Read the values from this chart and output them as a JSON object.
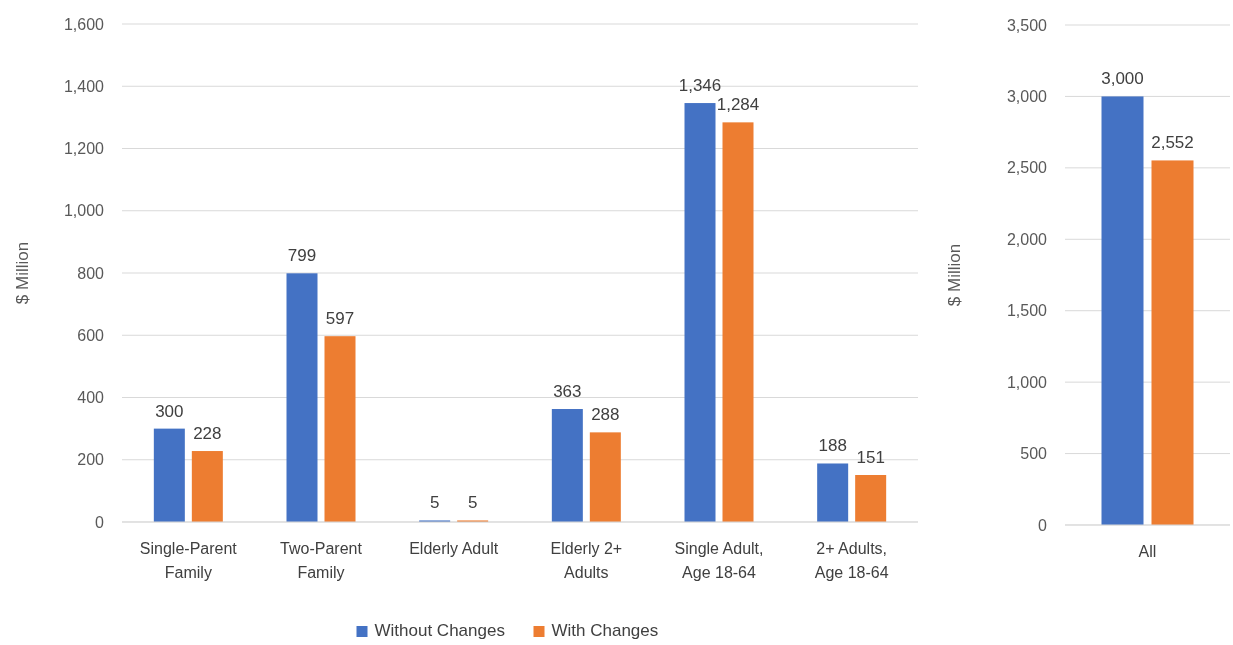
{
  "chart_data": [
    {
      "type": "bar",
      "ylabel": "$ Million",
      "categories": [
        "Single-Parent Family",
        "Two-Parent Family",
        "Elderly Adult",
        "Elderly 2+ Adults",
        "Single Adult, Age 18-64",
        "2+ Adults, Age 18-64"
      ],
      "series": [
        {
          "name": "Without Changes",
          "color": "#4472c4",
          "values": [
            300,
            799,
            5,
            363,
            1346,
            188
          ],
          "value_labels": [
            "300",
            "799",
            "5",
            "363",
            "1,346",
            "188"
          ]
        },
        {
          "name": "With Changes",
          "color": "#ed7d31",
          "values": [
            228,
            597,
            5,
            288,
            1284,
            151
          ],
          "value_labels": [
            "228",
            "597",
            "5",
            "288",
            "1,284",
            "151"
          ]
        }
      ],
      "ylim": [
        0,
        1600
      ],
      "yticks": [
        0,
        200,
        400,
        600,
        800,
        {
          "value": 1000,
          "label": "1,000"
        },
        {
          "value": 1200,
          "label": "1,200"
        },
        {
          "value": 1400,
          "label": "1,400"
        },
        {
          "value": 1600,
          "label": "1,600"
        }
      ],
      "grid": "y",
      "legend": "bottom"
    },
    {
      "type": "bar",
      "ylabel": "$ Million",
      "categories": [
        "All"
      ],
      "series": [
        {
          "color": "#4472c4",
          "values": [
            3000
          ],
          "value_labels": [
            "3,000"
          ]
        },
        {
          "color": "#ed7d31",
          "values": [
            2552
          ],
          "value_labels": [
            "2,552"
          ]
        }
      ],
      "ylim": [
        0,
        3500
      ],
      "yticks": [
        0,
        500,
        {
          "value": 1000,
          "label": "1,000"
        },
        {
          "value": 1500,
          "label": "1,500"
        },
        {
          "value": 2000,
          "label": "2,000"
        },
        {
          "value": 2500,
          "label": "2,500"
        },
        {
          "value": 3000,
          "label": "3,000"
        },
        {
          "value": 3500,
          "label": "3,500"
        }
      ],
      "grid": "y"
    }
  ]
}
